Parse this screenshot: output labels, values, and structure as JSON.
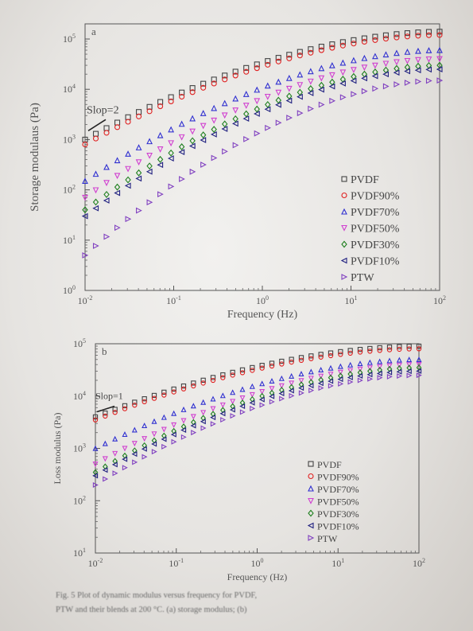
{
  "caption": {
    "line1": "Fig. 5  Plot of dynamic modulus versus frequency for PVDF,",
    "line2": "PTW and their blends at 200 °C. (a) storage modulus; (b)"
  },
  "chart_data": [
    {
      "type": "scatter",
      "panel_label": "a",
      "xlabel": "Frequency (Hz)",
      "ylabel": "Storage modulaus (Pa)",
      "xscale": "log",
      "yscale": "log",
      "xlim": [
        0.01,
        100
      ],
      "ylim": [
        1,
        200000
      ],
      "xticks": [
        {
          "v": 0.01,
          "base": "10",
          "exp": "-2"
        },
        {
          "v": 0.1,
          "base": "10",
          "exp": "-1"
        },
        {
          "v": 1,
          "base": "10",
          "exp": "0"
        },
        {
          "v": 10,
          "base": "10",
          "exp": "1"
        },
        {
          "v": 100,
          "base": "10",
          "exp": "2"
        }
      ],
      "yticks": [
        {
          "v": 1,
          "base": "10",
          "exp": "0"
        },
        {
          "v": 10,
          "base": "10",
          "exp": "1"
        },
        {
          "v": 100,
          "base": "10",
          "exp": "2"
        },
        {
          "v": 1000,
          "base": "10",
          "exp": "3"
        },
        {
          "v": 10000,
          "base": "10",
          "exp": "4"
        },
        {
          "v": 100000,
          "base": "10",
          "exp": "5"
        }
      ],
      "slope_label": "Slop=2",
      "legend_position": "bottom-right",
      "series": [
        {
          "name": "PVDF",
          "marker": "square",
          "color": "#444444",
          "y_start": 1000,
          "y_end": 140000
        },
        {
          "name": "PVDF90%",
          "marker": "circle",
          "color": "#e02020",
          "y_start": 800,
          "y_end": 120000
        },
        {
          "name": "PVDF70%",
          "marker": "triangle-up",
          "color": "#3030d0",
          "y_start": 150,
          "y_end": 60000
        },
        {
          "name": "PVDF50%",
          "marker": "triangle-down",
          "color": "#d040d0",
          "y_start": 70,
          "y_end": 40000
        },
        {
          "name": "PVDF30%",
          "marker": "diamond",
          "color": "#208020",
          "y_start": 40,
          "y_end": 30000
        },
        {
          "name": "PVDF10%",
          "marker": "triangle-left",
          "color": "#202080",
          "y_start": 30,
          "y_end": 25000
        },
        {
          "name": "PTW",
          "marker": "triangle-right",
          "color": "#8040c0",
          "y_start": 5,
          "y_end": 15000
        }
      ]
    },
    {
      "type": "scatter",
      "panel_label": "b",
      "xlabel": "Frequency (Hz)",
      "ylabel": "Loss modulus (Pa)",
      "xscale": "log",
      "yscale": "log",
      "xlim": [
        0.01,
        100
      ],
      "ylim": [
        10,
        100000
      ],
      "xticks": [
        {
          "v": 0.01,
          "base": "10",
          "exp": "-2"
        },
        {
          "v": 0.1,
          "base": "10",
          "exp": "-1"
        },
        {
          "v": 1,
          "base": "10",
          "exp": "0"
        },
        {
          "v": 10,
          "base": "10",
          "exp": "1"
        },
        {
          "v": 100,
          "base": "10",
          "exp": "2"
        }
      ],
      "yticks": [
        {
          "v": 10,
          "base": "10",
          "exp": "1"
        },
        {
          "v": 100,
          "base": "10",
          "exp": "2"
        },
        {
          "v": 1000,
          "base": "10",
          "exp": "3"
        },
        {
          "v": 10000,
          "base": "10",
          "exp": "4"
        },
        {
          "v": 100000,
          "base": "10",
          "exp": "5"
        }
      ],
      "slope_label": "Slop=1",
      "legend_position": "bottom-right",
      "series": [
        {
          "name": "PVDF",
          "marker": "square",
          "color": "#444444",
          "y_start": 4000,
          "y_end": 90000
        },
        {
          "name": "PVDF90%",
          "marker": "circle",
          "color": "#e02020",
          "y_start": 3500,
          "y_end": 80000
        },
        {
          "name": "PVDF70%",
          "marker": "triangle-up",
          "color": "#3030d0",
          "y_start": 1000,
          "y_end": 50000
        },
        {
          "name": "PVDF50%",
          "marker": "triangle-down",
          "color": "#d040d0",
          "y_start": 500,
          "y_end": 40000
        },
        {
          "name": "PVDF30%",
          "marker": "diamond",
          "color": "#208020",
          "y_start": 350,
          "y_end": 35000
        },
        {
          "name": "PVDF10%",
          "marker": "triangle-left",
          "color": "#202080",
          "y_start": 300,
          "y_end": 30000
        },
        {
          "name": "PTW",
          "marker": "triangle-right",
          "color": "#8040c0",
          "y_start": 200,
          "y_end": 25000
        }
      ]
    }
  ]
}
